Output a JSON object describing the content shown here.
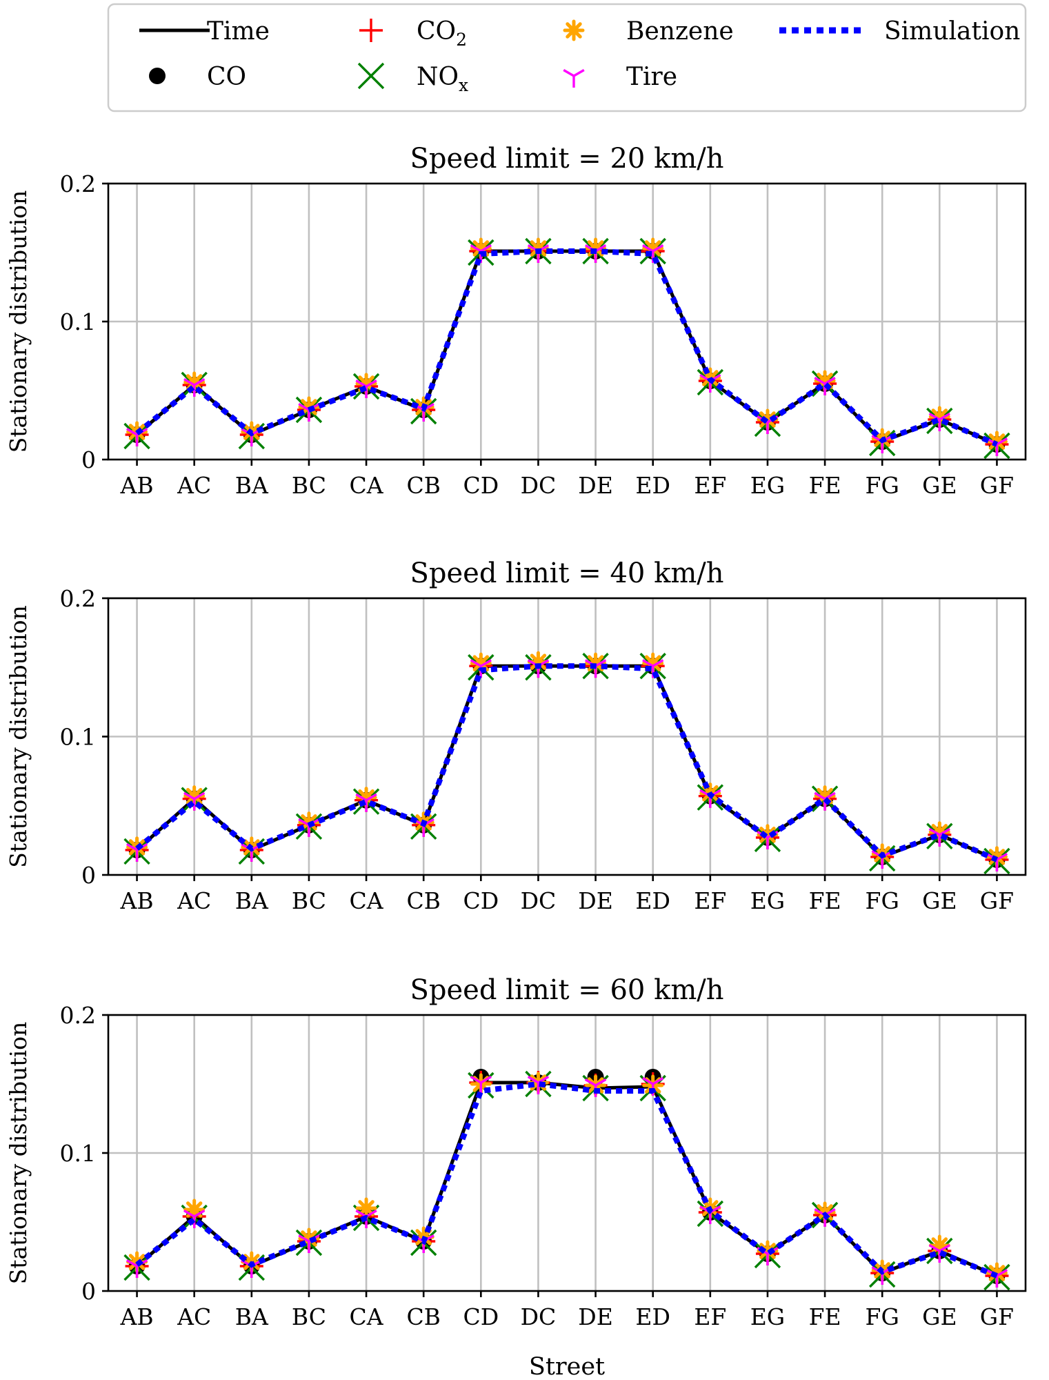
{
  "legend": {
    "entries": [
      {
        "key": "time",
        "label": "Time",
        "sub": ""
      },
      {
        "key": "co2",
        "label": "CO",
        "sub": "2"
      },
      {
        "key": "benzene",
        "label": "Benzene",
        "sub": ""
      },
      {
        "key": "simulation",
        "label": "Simulation",
        "sub": ""
      },
      {
        "key": "co",
        "label": "CO",
        "sub": ""
      },
      {
        "key": "nox",
        "label": "NO",
        "sub": "x"
      },
      {
        "key": "tire",
        "label": "Tire",
        "sub": ""
      }
    ]
  },
  "styles": {
    "time": {
      "color": "#000000",
      "marker": "line"
    },
    "co": {
      "color": "#000000",
      "marker": "circle"
    },
    "co2": {
      "color": "#ff0000",
      "marker": "plus"
    },
    "nox": {
      "color": "#008000",
      "marker": "x"
    },
    "benzene": {
      "color": "#ffa500",
      "marker": "star"
    },
    "tire": {
      "color": "#ff00ff",
      "marker": "tri-down"
    },
    "simulation": {
      "color": "#0000ff",
      "marker": "dotted-line"
    }
  },
  "chart_data": [
    {
      "type": "line",
      "title": "Speed limit = 20 km/h",
      "xlabel": "",
      "ylabel": "Stationary distribution",
      "ylim": [
        0,
        0.2
      ],
      "yticks": [
        "0",
        "0.1",
        "0.2"
      ],
      "categories": [
        "AB",
        "AC",
        "BA",
        "BC",
        "CA",
        "CB",
        "CD",
        "DC",
        "DE",
        "ED",
        "EF",
        "EG",
        "FE",
        "FG",
        "GE",
        "GF"
      ],
      "grid": true,
      "series": [
        {
          "name": "Time",
          "key": "time",
          "values": [
            0.018,
            0.054,
            0.018,
            0.036,
            0.053,
            0.036,
            0.151,
            0.151,
            0.151,
            0.151,
            0.057,
            0.027,
            0.055,
            0.013,
            0.029,
            0.011
          ]
        },
        {
          "name": "CO",
          "key": "co",
          "values": [
            0.018,
            0.054,
            0.018,
            0.036,
            0.053,
            0.036,
            0.151,
            0.151,
            0.151,
            0.151,
            0.057,
            0.027,
            0.055,
            0.013,
            0.029,
            0.011
          ]
        },
        {
          "name": "CO2",
          "key": "co2",
          "values": [
            0.018,
            0.054,
            0.018,
            0.036,
            0.053,
            0.036,
            0.151,
            0.151,
            0.151,
            0.151,
            0.057,
            0.027,
            0.055,
            0.013,
            0.029,
            0.011
          ]
        },
        {
          "name": "NOx",
          "key": "nox",
          "values": [
            0.017,
            0.054,
            0.017,
            0.036,
            0.053,
            0.035,
            0.15,
            0.151,
            0.151,
            0.151,
            0.056,
            0.026,
            0.055,
            0.012,
            0.028,
            0.01
          ]
        },
        {
          "name": "Benzene",
          "key": "benzene",
          "values": [
            0.02,
            0.056,
            0.02,
            0.038,
            0.055,
            0.038,
            0.153,
            0.153,
            0.153,
            0.153,
            0.059,
            0.029,
            0.057,
            0.015,
            0.031,
            0.013
          ]
        },
        {
          "name": "Tire",
          "key": "tire",
          "values": [
            0.018,
            0.054,
            0.018,
            0.036,
            0.053,
            0.036,
            0.151,
            0.151,
            0.151,
            0.151,
            0.057,
            0.027,
            0.055,
            0.013,
            0.029,
            0.011
          ]
        },
        {
          "name": "Simulation",
          "key": "simulation",
          "values": [
            0.019,
            0.053,
            0.019,
            0.036,
            0.052,
            0.037,
            0.149,
            0.151,
            0.151,
            0.149,
            0.058,
            0.027,
            0.055,
            0.014,
            0.029,
            0.011
          ]
        }
      ]
    },
    {
      "type": "line",
      "title": "Speed limit = 40 km/h",
      "xlabel": "",
      "ylabel": "Stationary distribution",
      "ylim": [
        0,
        0.2
      ],
      "yticks": [
        "0",
        "0.1",
        "0.2"
      ],
      "categories": [
        "AB",
        "AC",
        "BA",
        "BC",
        "CA",
        "CB",
        "CD",
        "DC",
        "DE",
        "ED",
        "EF",
        "EG",
        "FE",
        "FG",
        "GE",
        "GF"
      ],
      "grid": true,
      "series": [
        {
          "name": "Time",
          "key": "time",
          "values": [
            0.018,
            0.055,
            0.018,
            0.036,
            0.054,
            0.036,
            0.151,
            0.151,
            0.151,
            0.151,
            0.057,
            0.027,
            0.055,
            0.013,
            0.029,
            0.011
          ]
        },
        {
          "name": "CO",
          "key": "co",
          "values": [
            0.018,
            0.055,
            0.018,
            0.036,
            0.054,
            0.036,
            0.151,
            0.151,
            0.151,
            0.151,
            0.057,
            0.027,
            0.055,
            0.013,
            0.029,
            0.011
          ]
        },
        {
          "name": "CO2",
          "key": "co2",
          "values": [
            0.018,
            0.055,
            0.018,
            0.036,
            0.054,
            0.036,
            0.151,
            0.151,
            0.151,
            0.151,
            0.057,
            0.027,
            0.055,
            0.013,
            0.029,
            0.011
          ]
        },
        {
          "name": "NOx",
          "key": "nox",
          "values": [
            0.017,
            0.054,
            0.017,
            0.035,
            0.053,
            0.035,
            0.15,
            0.15,
            0.151,
            0.151,
            0.056,
            0.026,
            0.055,
            0.012,
            0.028,
            0.01
          ]
        },
        {
          "name": "Benzene",
          "key": "benzene",
          "values": [
            0.02,
            0.057,
            0.02,
            0.038,
            0.056,
            0.038,
            0.153,
            0.154,
            0.153,
            0.153,
            0.059,
            0.029,
            0.057,
            0.015,
            0.031,
            0.013
          ]
        },
        {
          "name": "Tire",
          "key": "tire",
          "values": [
            0.018,
            0.055,
            0.018,
            0.036,
            0.054,
            0.036,
            0.151,
            0.151,
            0.151,
            0.151,
            0.057,
            0.027,
            0.055,
            0.013,
            0.029,
            0.011
          ]
        },
        {
          "name": "Simulation",
          "key": "simulation",
          "values": [
            0.019,
            0.053,
            0.019,
            0.036,
            0.053,
            0.037,
            0.148,
            0.151,
            0.151,
            0.149,
            0.058,
            0.027,
            0.055,
            0.014,
            0.029,
            0.011
          ]
        }
      ]
    },
    {
      "type": "line",
      "title": "Speed limit = 60 km/h",
      "xlabel": "Street",
      "ylabel": "Stationary distribution",
      "ylim": [
        0,
        0.2
      ],
      "yticks": [
        "0",
        "0.1",
        "0.2"
      ],
      "categories": [
        "AB",
        "AC",
        "BA",
        "BC",
        "CA",
        "CB",
        "CD",
        "DC",
        "DE",
        "ED",
        "EF",
        "EG",
        "FE",
        "FG",
        "GE",
        "GF"
      ],
      "grid": true,
      "series": [
        {
          "name": "Time",
          "key": "time",
          "values": [
            0.018,
            0.054,
            0.018,
            0.036,
            0.054,
            0.036,
            0.151,
            0.151,
            0.147,
            0.148,
            0.057,
            0.027,
            0.055,
            0.013,
            0.029,
            0.011
          ]
        },
        {
          "name": "CO",
          "key": "co",
          "values": [
            0.018,
            0.054,
            0.018,
            0.036,
            0.054,
            0.036,
            0.155,
            0.151,
            0.155,
            0.155,
            0.057,
            0.027,
            0.055,
            0.013,
            0.029,
            0.011
          ]
        },
        {
          "name": "CO2",
          "key": "co2",
          "values": [
            0.018,
            0.054,
            0.018,
            0.036,
            0.054,
            0.036,
            0.151,
            0.151,
            0.149,
            0.15,
            0.057,
            0.027,
            0.055,
            0.013,
            0.029,
            0.011
          ]
        },
        {
          "name": "NOx",
          "key": "nox",
          "values": [
            0.017,
            0.053,
            0.017,
            0.035,
            0.053,
            0.035,
            0.149,
            0.15,
            0.147,
            0.147,
            0.056,
            0.026,
            0.055,
            0.012,
            0.029,
            0.01
          ]
        },
        {
          "name": "Benzene",
          "key": "benzene",
          "values": [
            0.021,
            0.059,
            0.021,
            0.038,
            0.06,
            0.039,
            0.15,
            0.151,
            0.149,
            0.149,
            0.06,
            0.029,
            0.057,
            0.015,
            0.033,
            0.013
          ]
        },
        {
          "name": "Tire",
          "key": "tire",
          "values": [
            0.018,
            0.054,
            0.018,
            0.036,
            0.054,
            0.036,
            0.151,
            0.151,
            0.149,
            0.15,
            0.057,
            0.027,
            0.055,
            0.013,
            0.029,
            0.011
          ]
        },
        {
          "name": "Simulation",
          "key": "simulation",
          "values": [
            0.019,
            0.052,
            0.019,
            0.036,
            0.053,
            0.036,
            0.145,
            0.15,
            0.145,
            0.145,
            0.058,
            0.027,
            0.055,
            0.014,
            0.028,
            0.011
          ]
        }
      ]
    }
  ]
}
